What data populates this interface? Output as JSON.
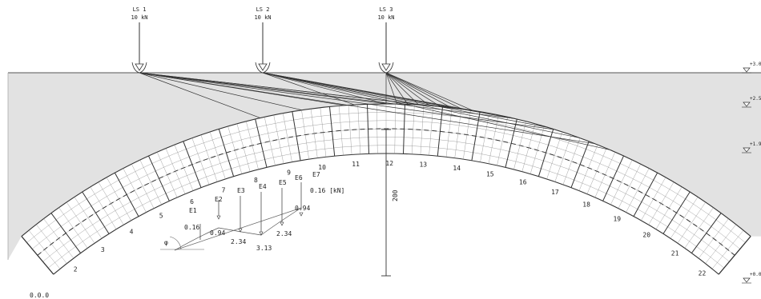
{
  "loads": [
    {
      "name": "LS 1",
      "value": "10 kN"
    },
    {
      "name": "LS 2",
      "value": "10 kN"
    },
    {
      "name": "LS 3",
      "value": "10 kN"
    }
  ],
  "levels": [
    "+3.0",
    "+2.5",
    "+1.9",
    "+0.0"
  ],
  "segments": [
    "2",
    "3",
    "4",
    "5",
    "6",
    "7",
    "8",
    "9",
    "10",
    "11",
    "12",
    "13",
    "14",
    "15",
    "16",
    "17",
    "18",
    "19",
    "20",
    "21",
    "22"
  ],
  "origin_label": "0.0.0",
  "dimension": "200",
  "diagram": {
    "labels": [
      "E1",
      "E2",
      "E3",
      "E4",
      "E5",
      "E6",
      "E7"
    ],
    "values": [
      "0.16",
      "0.94",
      "2.34",
      "3.13",
      "2.34",
      "0.94",
      "0.16 [kN]"
    ],
    "angle_symbol": "φ"
  },
  "colors": {
    "ground": "#e2e2e2",
    "line": "#333333",
    "grid": "#8a8a8a"
  }
}
